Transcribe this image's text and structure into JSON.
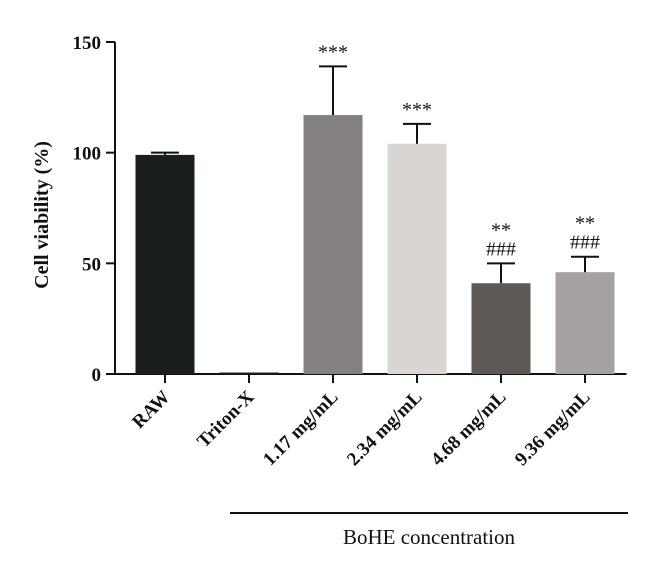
{
  "chart_data": {
    "type": "bar",
    "categories": [
      "RAW",
      "Triton-X",
      "1.17 mg/mL",
      "2.34 mg/mL",
      "4.68 mg/mL",
      "9.36 mg/mL"
    ],
    "values": [
      99,
      0.3,
      117,
      104,
      41,
      46
    ],
    "errors": [
      1,
      0.2,
      22,
      9,
      9,
      7
    ],
    "colors": [
      "#1b1f1b",
      "#1b1f1b",
      "#858181",
      "#d9d5d3",
      "#5e5956",
      "#a7a2a1"
    ],
    "significance": [
      "",
      "",
      "***",
      "***",
      "**\n###",
      "**\n###"
    ],
    "ylabel": "Cell viability (%)",
    "ylim": [
      0,
      150
    ],
    "yticks": [
      0,
      50,
      100,
      150
    ],
    "group_label": "BoHE concentration",
    "grid": false
  }
}
